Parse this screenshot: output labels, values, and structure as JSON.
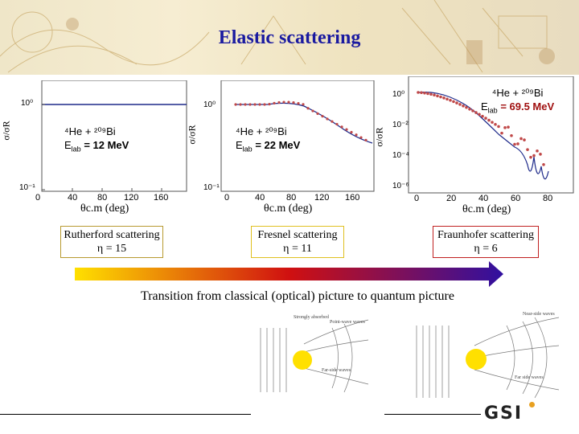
{
  "slide": {
    "title": "Elastic scattering",
    "caption": "Transition from classical (optical) picture to quantum picture",
    "logo": "GSI"
  },
  "panels": [
    {
      "reaction_prefix": "⁴He + ²⁰⁹Bi",
      "energy_label": "E",
      "energy_sub": "lab",
      "energy_value": "= 12 MeV",
      "ylabel": "σ/σR",
      "xlabel": "θc.m (deg)",
      "yticks": [
        "10⁰",
        "10⁻¹"
      ],
      "xticks": [
        "0",
        "40",
        "80",
        "120",
        "160"
      ],
      "regime": "Rutherford scattering",
      "eta": "η = 15",
      "box_color": "#b89a30"
    },
    {
      "reaction_prefix": "⁴He + ²⁰⁹Bi",
      "energy_label": "E",
      "energy_sub": "lab",
      "energy_value": "= 22 MeV",
      "ylabel": "σ/σR",
      "xlabel": "θc.m (deg)",
      "yticks": [
        "10⁰",
        "10⁻¹"
      ],
      "xticks": [
        "0",
        "40",
        "80",
        "120",
        "160"
      ],
      "regime": "Fresnel scattering",
      "eta": "η = 11",
      "box_color": "#e0c020"
    },
    {
      "reaction_prefix": "⁴He + ²⁰⁹Bi",
      "energy_label": "E",
      "energy_sub": "lab",
      "energy_value": "= 69.5 MeV",
      "ylabel": "σ/σR",
      "xlabel": "θc.m (deg)",
      "yticks": [
        "10⁰",
        "10⁻²",
        "10⁻⁴",
        "10⁻⁶"
      ],
      "xticks": [
        "0",
        "20",
        "40",
        "60",
        "80"
      ],
      "regime": "Fraunhofer scattering",
      "eta": "η = 6",
      "box_color": "#c02020"
    }
  ],
  "diagrams": {
    "left": {
      "top_labels": [
        "Strongly absorbed",
        "Point-wave waves"
      ],
      "bottom_label": "Far-side waves"
    },
    "right": {
      "top_labels": [
        "Near-side waves"
      ],
      "bottom_label": "Far side waves"
    }
  },
  "colors": {
    "title": "#1a1aa0",
    "data_points": "#c04848",
    "fit_line": "#1e2a8a"
  }
}
